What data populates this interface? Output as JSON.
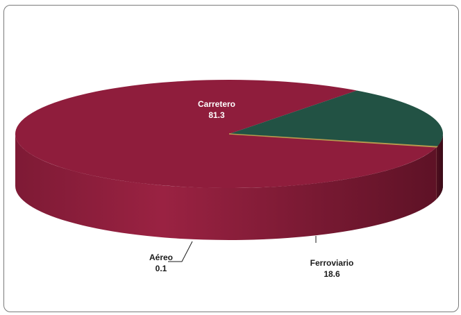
{
  "chart_data": {
    "type": "pie",
    "title": "",
    "categories": [
      "Carretero",
      "Ferroviario",
      "Aéreo"
    ],
    "values": [
      81.3,
      18.6,
      0.1
    ],
    "colors": [
      "#8f1d3c",
      "#225244",
      "#c9b36a"
    ],
    "label_color_on_slice": "#ffffff",
    "label_color_outside": "#1a1a1a",
    "style": "3d",
    "legend": "none"
  }
}
